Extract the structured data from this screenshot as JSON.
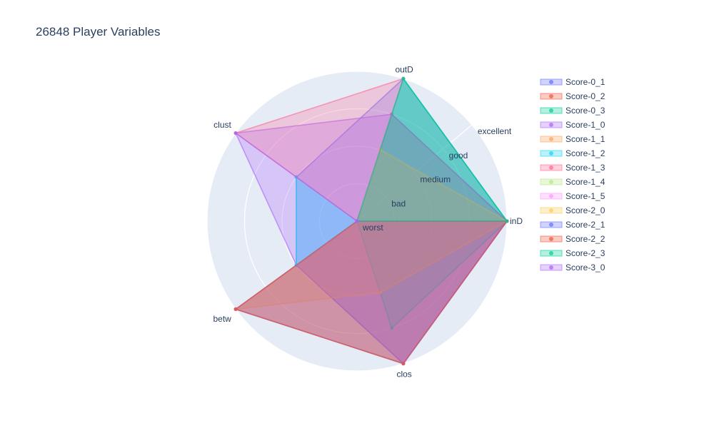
{
  "chart_data": {
    "type": "radar",
    "title": "26848 Player Variables",
    "axes": [
      "inD",
      "outD",
      "clust",
      "betw",
      "clos"
    ],
    "radial_ticks": [
      "worst",
      "bad",
      "medium",
      "good",
      "excellent"
    ],
    "radial_range": [
      0,
      4
    ],
    "legend_position": "top-right",
    "series": [
      {
        "name": "Score-0_1",
        "color": "#636efa",
        "values": [
          4,
          4,
          2,
          2,
          4
        ]
      },
      {
        "name": "Score-0_2",
        "color": "#EF553B",
        "values": [
          4,
          3,
          0,
          4,
          4
        ]
      },
      {
        "name": "Score-0_3",
        "color": "#00cc96",
        "values": [
          4,
          4,
          0,
          0,
          3
        ]
      },
      {
        "name": "Score-1_0",
        "color": "#ab63fa",
        "values": [
          4,
          3,
          4,
          2,
          4
        ]
      },
      {
        "name": "Score-1_1",
        "color": "#FFA15A",
        "values": [
          4,
          2,
          0,
          4,
          2
        ]
      },
      {
        "name": "Score-1_2",
        "color": "#19d3f3",
        "values": [
          0,
          0,
          2,
          2,
          0
        ]
      },
      {
        "name": "Score-1_3",
        "color": "#FF6692",
        "values": [
          0,
          4,
          4,
          0,
          0
        ]
      },
      {
        "name": "Score-1_4",
        "color": "#B6E880",
        "values": [
          0,
          0,
          0,
          0,
          0
        ]
      },
      {
        "name": "Score-1_5",
        "color": "#FF97FF",
        "values": [
          0,
          0,
          0,
          0,
          0
        ]
      },
      {
        "name": "Score-2_0",
        "color": "#FECB52",
        "values": [
          0,
          0,
          0,
          0,
          0
        ]
      },
      {
        "name": "Score-2_1",
        "color": "#636efa",
        "values": [
          4,
          0,
          0,
          4,
          4
        ]
      },
      {
        "name": "Score-2_2",
        "color": "#EF553B",
        "values": [
          4,
          0,
          0,
          4,
          4
        ]
      },
      {
        "name": "Score-2_3",
        "color": "#00cc96",
        "values": [
          4,
          4,
          0,
          0,
          0
        ]
      },
      {
        "name": "Score-3_0",
        "color": "#ab63fa",
        "values": [
          0,
          0,
          4,
          0,
          0
        ]
      }
    ]
  }
}
